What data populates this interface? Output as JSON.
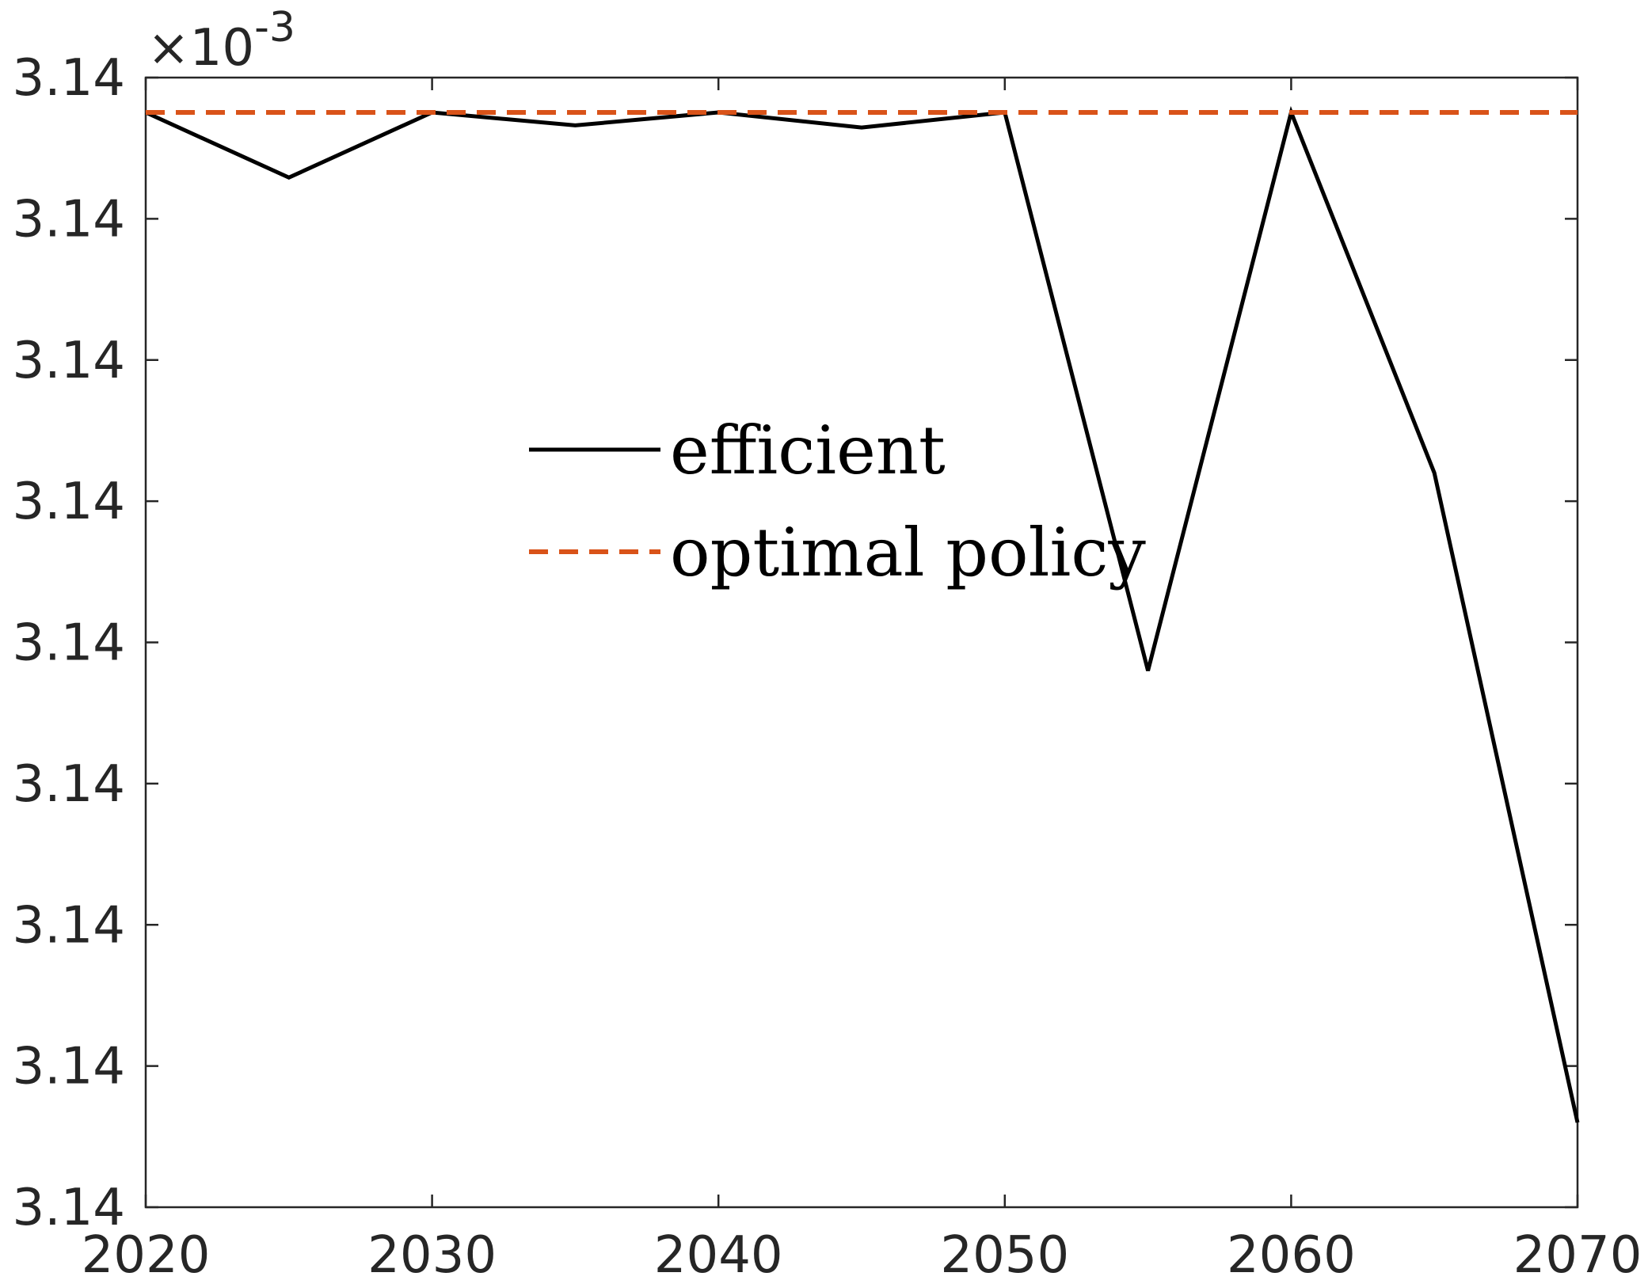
{
  "chart_data": {
    "type": "line",
    "x": [
      2020,
      2025,
      2030,
      2035,
      2040,
      2045,
      2050,
      2055,
      2060,
      2065,
      2070
    ],
    "series": [
      {
        "name": "efficient",
        "values": [
          0.00314,
          0.00314,
          0.00314,
          0.00314,
          0.00314,
          0.00314,
          0.00314,
          0.00314,
          0.00314,
          0.00314,
          0.00314
        ],
        "display_level": [
          0.9692,
          0.9115,
          0.9692,
          0.9577,
          0.9692,
          0.9558,
          0.9692,
          0.475,
          0.9692,
          0.65,
          0.075
        ],
        "color": "#000000",
        "style": "solid"
      },
      {
        "name": "optimal policy",
        "values": [
          0.00314,
          0.00314,
          0.00314,
          0.00314,
          0.00314,
          0.00314,
          0.00314,
          0.00314,
          0.00314,
          0.00314,
          0.00314
        ],
        "display_level": [
          0.9692,
          0.9692,
          0.9692,
          0.9692,
          0.9692,
          0.9692,
          0.9692,
          0.9692,
          0.9692,
          0.9692,
          0.9692
        ],
        "color": "#D95319",
        "style": "dashed"
      }
    ],
    "xlim": [
      2020,
      2070
    ],
    "x_ticks": [
      "2020",
      "2030",
      "2040",
      "2050",
      "2060",
      "2070"
    ],
    "y_ticks": [
      "3.14",
      "3.14",
      "3.14",
      "3.14",
      "3.14",
      "3.14",
      "3.14",
      "3.14",
      "3.14"
    ],
    "y_exponent": {
      "base": "10",
      "power": "-3",
      "prefix": "×"
    },
    "title": "",
    "xlabel": "",
    "ylabel": "",
    "grid": false,
    "legend": {
      "entries": [
        "efficient",
        "optimal policy"
      ],
      "placement": "center-left, inside axes",
      "box": false
    }
  }
}
